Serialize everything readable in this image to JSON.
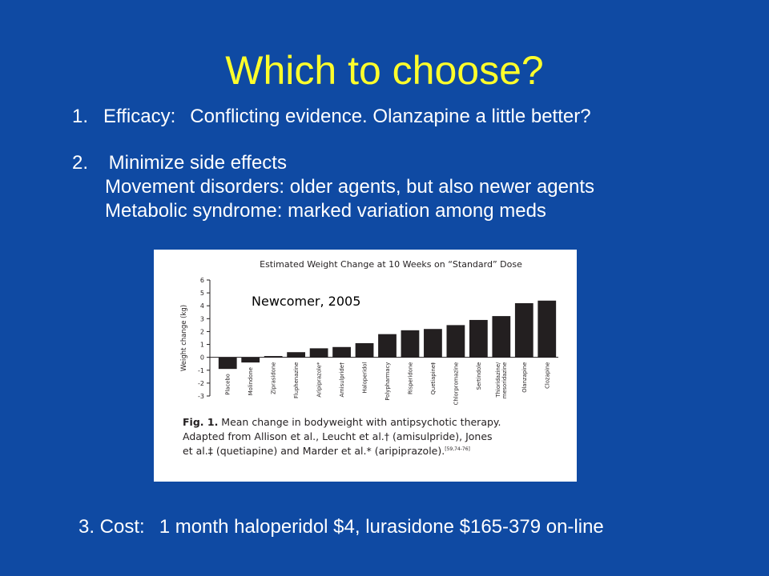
{
  "slide": {
    "title": "Which to choose?",
    "point1": {
      "number": "1.",
      "label": "Efficacy:",
      "text": "Conflicting evidence.  Olanzapine a little better?"
    },
    "point2": {
      "number": "2.",
      "heading": "Minimize side effects",
      "lines": [
        "Movement disorders:  older agents, but also newer agents",
        "Metabolic syndrome:  marked variation among meds"
      ]
    },
    "point3": {
      "label": "3. Cost:",
      "text": "1 month  haloperidol $4, lurasidone $165-379 on-line"
    },
    "citation": "Newcomer, 2005",
    "colors": {
      "background": "#0f4aa3",
      "title": "#ffff2b",
      "bars": "#231f20"
    }
  },
  "chart_data": {
    "type": "bar",
    "title": "Estimated Weight Change at 10 Weeks on “Standard” Dose",
    "ylabel": "Weight change (kg)",
    "xlabel": "",
    "ylim": [
      -3,
      6
    ],
    "yticks": [
      "6",
      "5",
      "4",
      "3",
      "2",
      "1",
      "0",
      "-1",
      "-2",
      "-3"
    ],
    "yticks_values": [
      6,
      5,
      4,
      3,
      2,
      1,
      0,
      -1,
      -2,
      -3
    ],
    "categories": [
      "Placebo",
      "Molindone",
      "Ziprasidone",
      "Fluphenazine",
      "Aripiprazole*",
      "Amisulpride†",
      "Haloperidol",
      "Polypharmacy",
      "Risperidone",
      "Quetiapine‡",
      "Chlorpromazine",
      "Sertindole",
      "Thioridazine/ mesoridazine",
      "Olanzapine",
      "Clozapine"
    ],
    "values": [
      -0.9,
      -0.4,
      0.1,
      0.4,
      0.7,
      0.8,
      1.1,
      1.8,
      2.1,
      2.2,
      2.5,
      2.9,
      3.2,
      4.2,
      4.4
    ],
    "grid": false,
    "caption": {
      "label": "Fig. 1.",
      "lines": [
        "Mean change in bodyweight with antipsychotic therapy.",
        "Adapted from Allison et al., Leucht et al.† (amisulpride), Jones",
        "et al.‡ (quetiapine) and Marder et al.* (aripiprazole)."
      ],
      "refs": "[59,74-76]"
    }
  }
}
